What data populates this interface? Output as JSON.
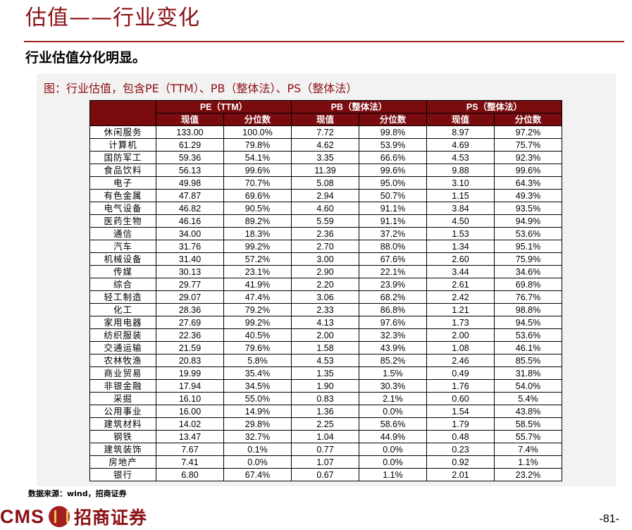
{
  "header": {
    "title": "估值——行业变化",
    "subtitle": "行业估值分化明显。"
  },
  "figure": {
    "title": "图：行业估值，包含PE（TTM）、PB（整体法）、PS（整体法）",
    "groups": [
      "PE（TTM）",
      "PB（整体法）",
      "PS（整体法）"
    ],
    "subheaders": [
      "现值",
      "分位数",
      "现值",
      "分位数",
      "现值",
      "分位数"
    ],
    "rows": [
      [
        "休闲服务",
        "133.00",
        "100.0%",
        "7.72",
        "99.8%",
        "8.97",
        "97.2%"
      ],
      [
        "计算机",
        "61.29",
        "79.8%",
        "4.62",
        "53.9%",
        "4.69",
        "75.7%"
      ],
      [
        "国防军工",
        "59.36",
        "54.1%",
        "3.35",
        "66.6%",
        "4.53",
        "92.3%"
      ],
      [
        "食品饮料",
        "56.13",
        "99.6%",
        "11.39",
        "99.6%",
        "9.88",
        "99.6%"
      ],
      [
        "电子",
        "49.98",
        "70.7%",
        "5.08",
        "95.0%",
        "3.10",
        "64.3%"
      ],
      [
        "有色金属",
        "47.87",
        "69.6%",
        "2.94",
        "50.7%",
        "1.15",
        "49.3%"
      ],
      [
        "电气设备",
        "46.82",
        "90.5%",
        "4.60",
        "91.1%",
        "3.84",
        "93.5%"
      ],
      [
        "医药生物",
        "46.16",
        "89.2%",
        "5.59",
        "91.1%",
        "4.50",
        "94.9%"
      ],
      [
        "通信",
        "34.00",
        "18.3%",
        "2.36",
        "37.2%",
        "1.53",
        "53.6%"
      ],
      [
        "汽车",
        "31.76",
        "99.2%",
        "2.70",
        "88.0%",
        "1.34",
        "95.1%"
      ],
      [
        "机械设备",
        "31.40",
        "57.2%",
        "3.00",
        "67.6%",
        "2.60",
        "75.9%"
      ],
      [
        "传媒",
        "30.13",
        "23.1%",
        "2.90",
        "22.1%",
        "3.44",
        "34.6%"
      ],
      [
        "综合",
        "29.77",
        "41.9%",
        "2.20",
        "23.9%",
        "2.61",
        "69.8%"
      ],
      [
        "轻工制造",
        "29.07",
        "47.4%",
        "3.06",
        "68.2%",
        "2.42",
        "76.7%"
      ],
      [
        "化工",
        "28.36",
        "79.2%",
        "2.33",
        "86.8%",
        "1.21",
        "98.8%"
      ],
      [
        "家用电器",
        "27.69",
        "99.2%",
        "4.13",
        "97.6%",
        "1.73",
        "94.5%"
      ],
      [
        "纺织服装",
        "22.36",
        "40.5%",
        "2.00",
        "32.3%",
        "2.00",
        "53.6%"
      ],
      [
        "交通运输",
        "21.59",
        "79.6%",
        "1.58",
        "43.9%",
        "1.08",
        "46.1%"
      ],
      [
        "农林牧渔",
        "20.83",
        "5.8%",
        "4.53",
        "85.2%",
        "2.46",
        "85.5%"
      ],
      [
        "商业贸易",
        "19.99",
        "35.4%",
        "1.35",
        "1.5%",
        "0.49",
        "31.8%"
      ],
      [
        "非银金融",
        "17.94",
        "34.5%",
        "1.90",
        "30.3%",
        "1.76",
        "54.0%"
      ],
      [
        "采掘",
        "16.10",
        "55.0%",
        "0.83",
        "2.1%",
        "0.60",
        "5.4%"
      ],
      [
        "公用事业",
        "16.00",
        "14.9%",
        "1.36",
        "0.0%",
        "1.54",
        "43.8%"
      ],
      [
        "建筑材料",
        "14.02",
        "29.8%",
        "2.25",
        "58.6%",
        "1.79",
        "58.5%"
      ],
      [
        "钢铁",
        "13.47",
        "32.7%",
        "1.04",
        "44.9%",
        "0.48",
        "55.7%"
      ],
      [
        "建筑装饰",
        "7.67",
        "0.1%",
        "0.77",
        "0.0%",
        "0.23",
        "7.4%"
      ],
      [
        "房地产",
        "7.41",
        "0.0%",
        "1.07",
        "0.0%",
        "0.92",
        "1.1%"
      ],
      [
        "银行",
        "6.80",
        "67.4%",
        "0.67",
        "1.1%",
        "2.01",
        "23.2%"
      ]
    ],
    "source": "数据来源：wind，招商证券"
  },
  "footer": {
    "logo_text": "CMS",
    "logo_cn": "招商证券",
    "page_number": "-81-"
  },
  "colors": {
    "brand_red": "#8b0f12",
    "header_fill": "#7a0c10",
    "panel_gray": "#f2f2f2"
  }
}
